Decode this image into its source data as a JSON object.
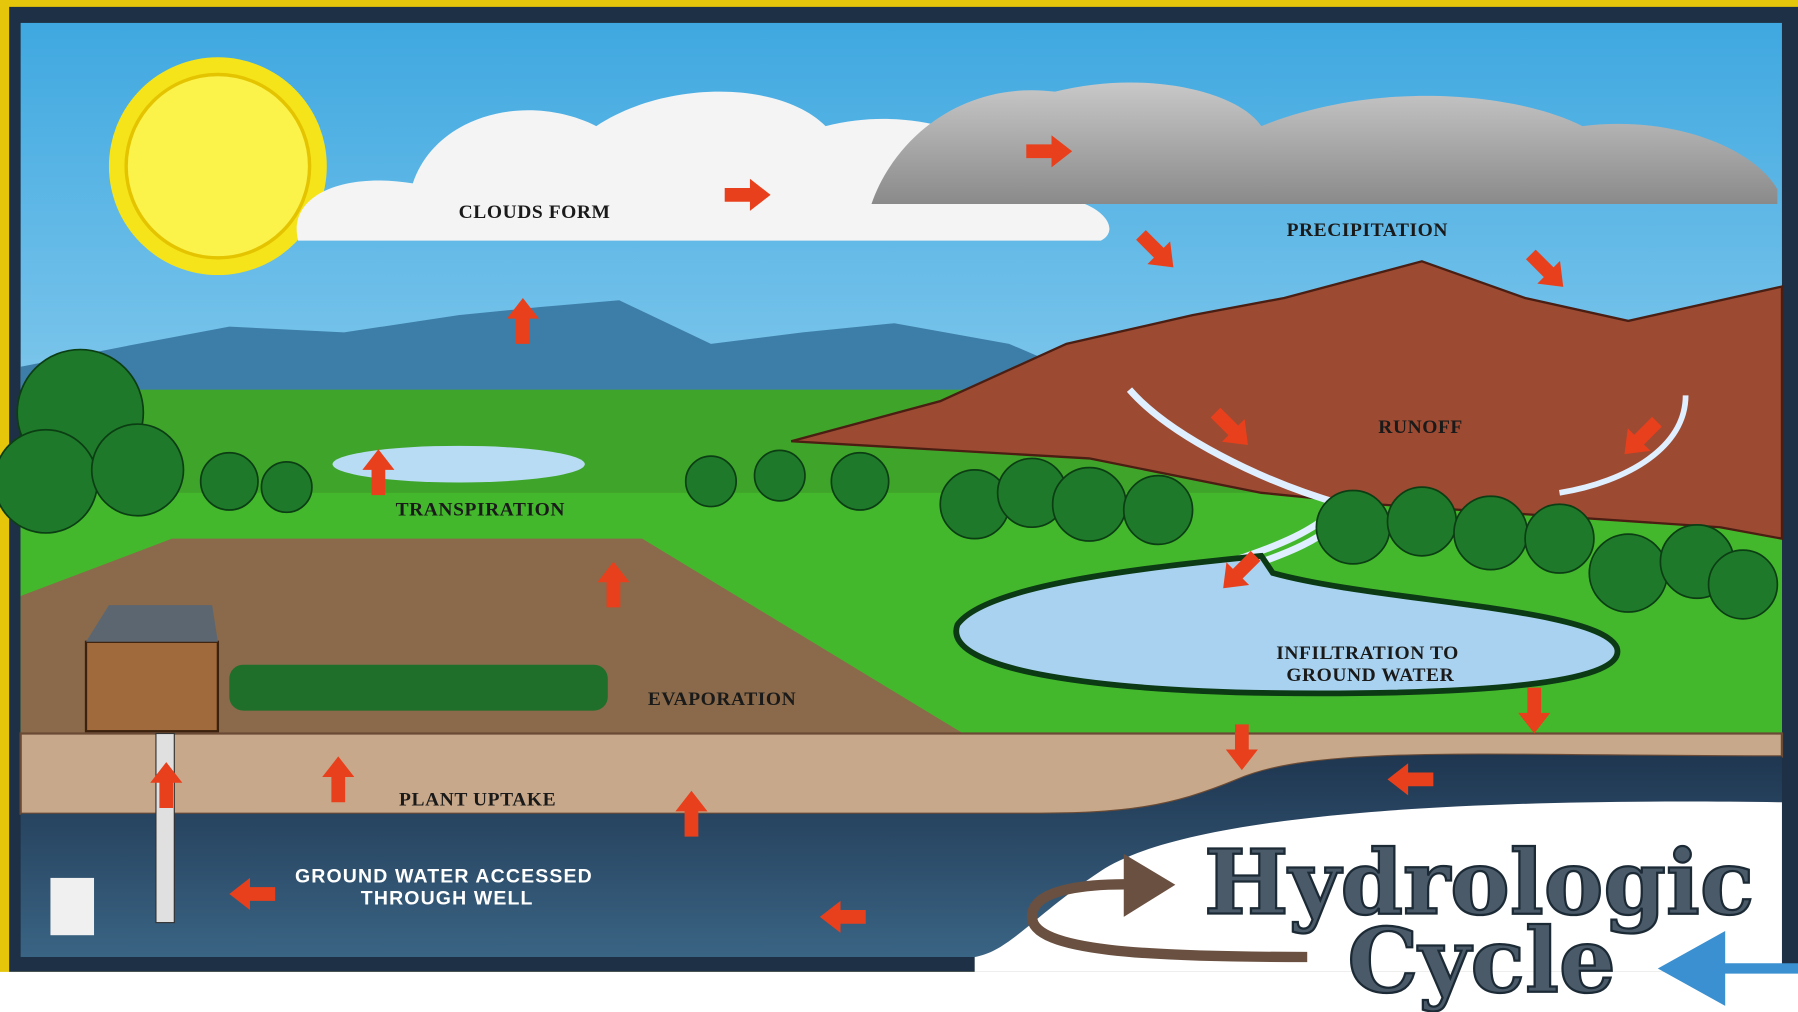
{
  "title": {
    "line1": "Hydrologic",
    "line2": "Cycle"
  },
  "labels": {
    "clouds_form": "CLOUDS FORM",
    "precipitation": "PRECIPITATION",
    "runoff": "RUNOFF",
    "transpiration": "TRANSPIRATION",
    "evaporation": "EVAPORATION",
    "infiltration": [
      "INFILTRATION TO",
      "GROUND WATER"
    ],
    "plant_uptake": "PLANT UPTAKE",
    "well": [
      "GROUND WATER ACCESSED",
      "THROUGH WELL"
    ]
  }
}
